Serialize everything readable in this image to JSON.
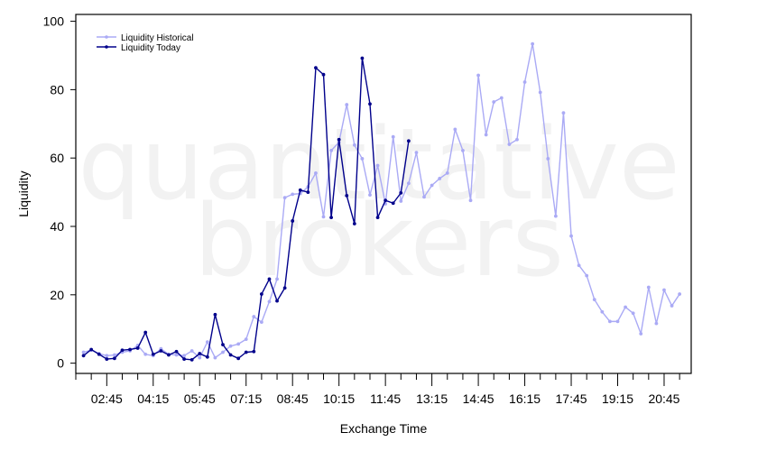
{
  "watermark": {
    "line1": "quantitative",
    "line2": "brokers"
  },
  "chart_data": {
    "type": "line",
    "xlabel": "Exchange Time",
    "ylabel": "Liquidity",
    "xlim": [
      0,
      79.5
    ],
    "ylim": [
      -3,
      102
    ],
    "yticks": [
      0,
      20,
      40,
      60,
      80,
      100
    ],
    "xticks": [
      {
        "pos": 4,
        "label": "02:45"
      },
      {
        "pos": 10,
        "label": "04:15"
      },
      {
        "pos": 16,
        "label": "05:45"
      },
      {
        "pos": 22,
        "label": "07:15"
      },
      {
        "pos": 28,
        "label": "08:45"
      },
      {
        "pos": 34,
        "label": "10:15"
      },
      {
        "pos": 40,
        "label": "11:45"
      },
      {
        "pos": 46,
        "label": "13:15"
      },
      {
        "pos": 52,
        "label": "14:45"
      },
      {
        "pos": 58,
        "label": "16:15"
      },
      {
        "pos": 64,
        "label": "17:45"
      },
      {
        "pos": 70,
        "label": "19:15"
      },
      {
        "pos": 76,
        "label": "20:45"
      }
    ],
    "legend_position": "top-left",
    "series": [
      {
        "name": "Liquidity Historical",
        "color": "#aaaaf5",
        "values": [
          3.2,
          3.8,
          2.8,
          2.2,
          2.4,
          3.2,
          3.6,
          5.2,
          2.6,
          2.2,
          4.2,
          2.6,
          2.4,
          2.2,
          3.6,
          1.6,
          6.2,
          1.6,
          3.2,
          5.0,
          5.6,
          7.0,
          13.6,
          12.0,
          18.0,
          24.6,
          48.4,
          49.4,
          49.6,
          51.6,
          55.6,
          42.8,
          62.2,
          64.6,
          75.6,
          63.8,
          59.8,
          49.2,
          57.8,
          46.6,
          66.2,
          47.4,
          52.6,
          61.6,
          48.6,
          52.0,
          54.0,
          55.6,
          68.4,
          62.2,
          47.6,
          84.2,
          66.8,
          76.4,
          77.6,
          64.0,
          65.4,
          82.2,
          93.4,
          79.2,
          59.8,
          43.0,
          73.2,
          37.2,
          28.6,
          25.6,
          18.6,
          15.0,
          12.2,
          12.2,
          16.4,
          14.6,
          8.6,
          22.2,
          11.6,
          21.4,
          16.8,
          20.2
        ]
      },
      {
        "name": "Liquidity Today",
        "color": "#00008b",
        "values": [
          2.2,
          4.0,
          2.6,
          1.2,
          1.4,
          3.8,
          4.0,
          4.4,
          9.0,
          2.6,
          3.6,
          2.4,
          3.4,
          1.2,
          1.0,
          2.8,
          1.8,
          14.2,
          5.4,
          2.4,
          1.4,
          3.2,
          3.4,
          20.2,
          24.6,
          18.2,
          22.0,
          41.6,
          50.6,
          50.0,
          86.4,
          84.4,
          42.6,
          65.4,
          49.0,
          40.8,
          89.2,
          75.8,
          42.6,
          47.6,
          46.8,
          49.8,
          65.0
        ]
      }
    ]
  }
}
